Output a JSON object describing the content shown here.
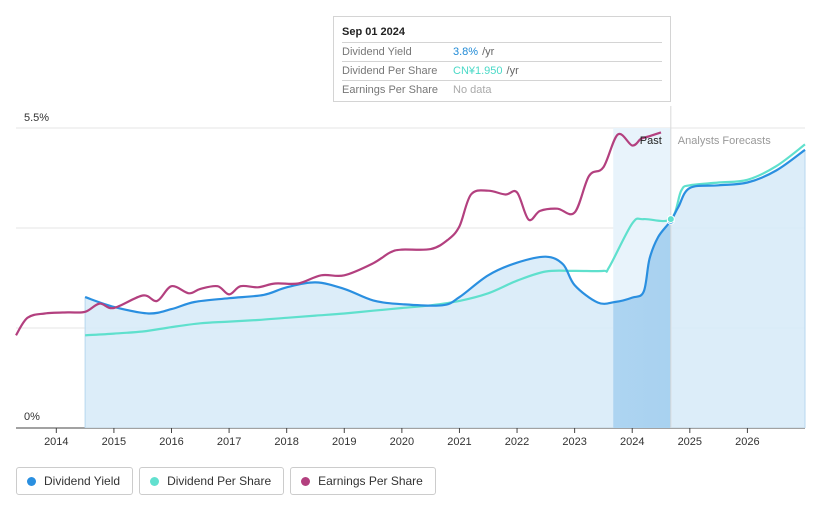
{
  "tooltip": {
    "date": "Sep 01 2024",
    "rows": [
      {
        "label": "Dividend Yield",
        "value": "3.8%",
        "unit": "/yr",
        "color": "#1f8ad6"
      },
      {
        "label": "Dividend Per Share",
        "value": "CN¥1.950",
        "unit": "/yr",
        "color": "#4ad9c7"
      },
      {
        "label": "Earnings Per Share",
        "value": "No data",
        "unit": "",
        "color": "#aaaaaa"
      }
    ]
  },
  "legend": [
    {
      "label": "Dividend Yield",
      "color": "#2a8fe0"
    },
    {
      "label": "Dividend Per Share",
      "color": "#62e0cf"
    },
    {
      "label": "Earnings Per Share",
      "color": "#b3407f"
    }
  ],
  "chart_data": {
    "type": "line",
    "y_top_label": "5.5%",
    "y_bottom_label": "0%",
    "ylim": [
      0,
      5.5
    ],
    "xlim": [
      2013.3,
      2027.0
    ],
    "x_ticks": [
      "2014",
      "2015",
      "2016",
      "2017",
      "2018",
      "2019",
      "2020",
      "2021",
      "2022",
      "2023",
      "2024",
      "2025",
      "2026"
    ],
    "past_label": "Past",
    "forecast_label": "Analysts Forecasts",
    "divider_x": 2024.67,
    "highlight_start_x": 2023.67,
    "colors": {
      "yield": "#2a8fe0",
      "dps": "#5fe0cd",
      "eps": "#b3407f",
      "fill": "#d6eaf8",
      "highlight": "#a9d2f0"
    },
    "series": [
      {
        "name": "Dividend Yield",
        "x": [
          2014.5,
          2015.0,
          2015.6,
          2016.0,
          2016.4,
          2017.0,
          2017.6,
          2018.0,
          2018.5,
          2019.0,
          2019.5,
          2020.0,
          2020.7,
          2021.0,
          2021.5,
          2022.0,
          2022.5,
          2022.8,
          2023.0,
          2023.4,
          2023.7,
          2024.0,
          2024.2,
          2024.3,
          2024.45,
          2024.67,
          2024.8,
          2025.0,
          2025.5,
          2026.0,
          2026.5,
          2027.0
        ],
        "values": [
          2.4,
          2.22,
          2.1,
          2.18,
          2.31,
          2.38,
          2.44,
          2.58,
          2.67,
          2.55,
          2.34,
          2.27,
          2.25,
          2.4,
          2.8,
          3.03,
          3.14,
          3.0,
          2.62,
          2.3,
          2.31,
          2.39,
          2.5,
          3.1,
          3.5,
          3.8,
          4.05,
          4.4,
          4.45,
          4.5,
          4.72,
          5.1
        ]
      },
      {
        "name": "Dividend Per Share",
        "x": [
          2014.5,
          2015.0,
          2015.5,
          2016.0,
          2016.5,
          2017.0,
          2017.5,
          2018.0,
          2018.5,
          2019.0,
          2019.5,
          2020.0,
          2020.5,
          2021.0,
          2021.5,
          2022.0,
          2022.5,
          2023.0,
          2023.5,
          2023.6,
          2024.0,
          2024.2,
          2024.67,
          2024.85,
          2025.0,
          2025.5,
          2026.0,
          2026.5,
          2027.0
        ],
        "values": [
          1.7,
          1.73,
          1.77,
          1.85,
          1.92,
          1.95,
          1.98,
          2.02,
          2.06,
          2.1,
          2.15,
          2.2,
          2.25,
          2.33,
          2.47,
          2.7,
          2.87,
          2.88,
          2.88,
          2.95,
          3.75,
          3.83,
          3.83,
          4.35,
          4.45,
          4.5,
          4.55,
          4.8,
          5.2
        ]
      },
      {
        "name": "Earnings Per Share",
        "x": [
          2013.3,
          2013.5,
          2013.8,
          2014.2,
          2014.5,
          2014.75,
          2015.0,
          2015.5,
          2015.75,
          2016.0,
          2016.3,
          2016.5,
          2016.8,
          2017.0,
          2017.2,
          2017.5,
          2017.8,
          2018.2,
          2018.6,
          2019.0,
          2019.5,
          2019.8,
          2020.0,
          2020.5,
          2020.8,
          2021.0,
          2021.2,
          2021.5,
          2021.8,
          2022.0,
          2022.2,
          2022.4,
          2022.7,
          2023.0,
          2023.25,
          2023.5,
          2023.75,
          2024.0,
          2024.15,
          2024.3,
          2024.5
        ],
        "values": [
          1.7,
          2.02,
          2.1,
          2.12,
          2.13,
          2.28,
          2.2,
          2.43,
          2.33,
          2.6,
          2.47,
          2.55,
          2.6,
          2.45,
          2.6,
          2.58,
          2.65,
          2.65,
          2.8,
          2.8,
          3.02,
          3.22,
          3.27,
          3.28,
          3.45,
          3.7,
          4.28,
          4.35,
          4.28,
          4.32,
          3.82,
          3.98,
          4.02,
          3.95,
          4.62,
          4.78,
          5.38,
          5.18,
          5.3,
          5.35,
          5.42
        ]
      }
    ]
  }
}
